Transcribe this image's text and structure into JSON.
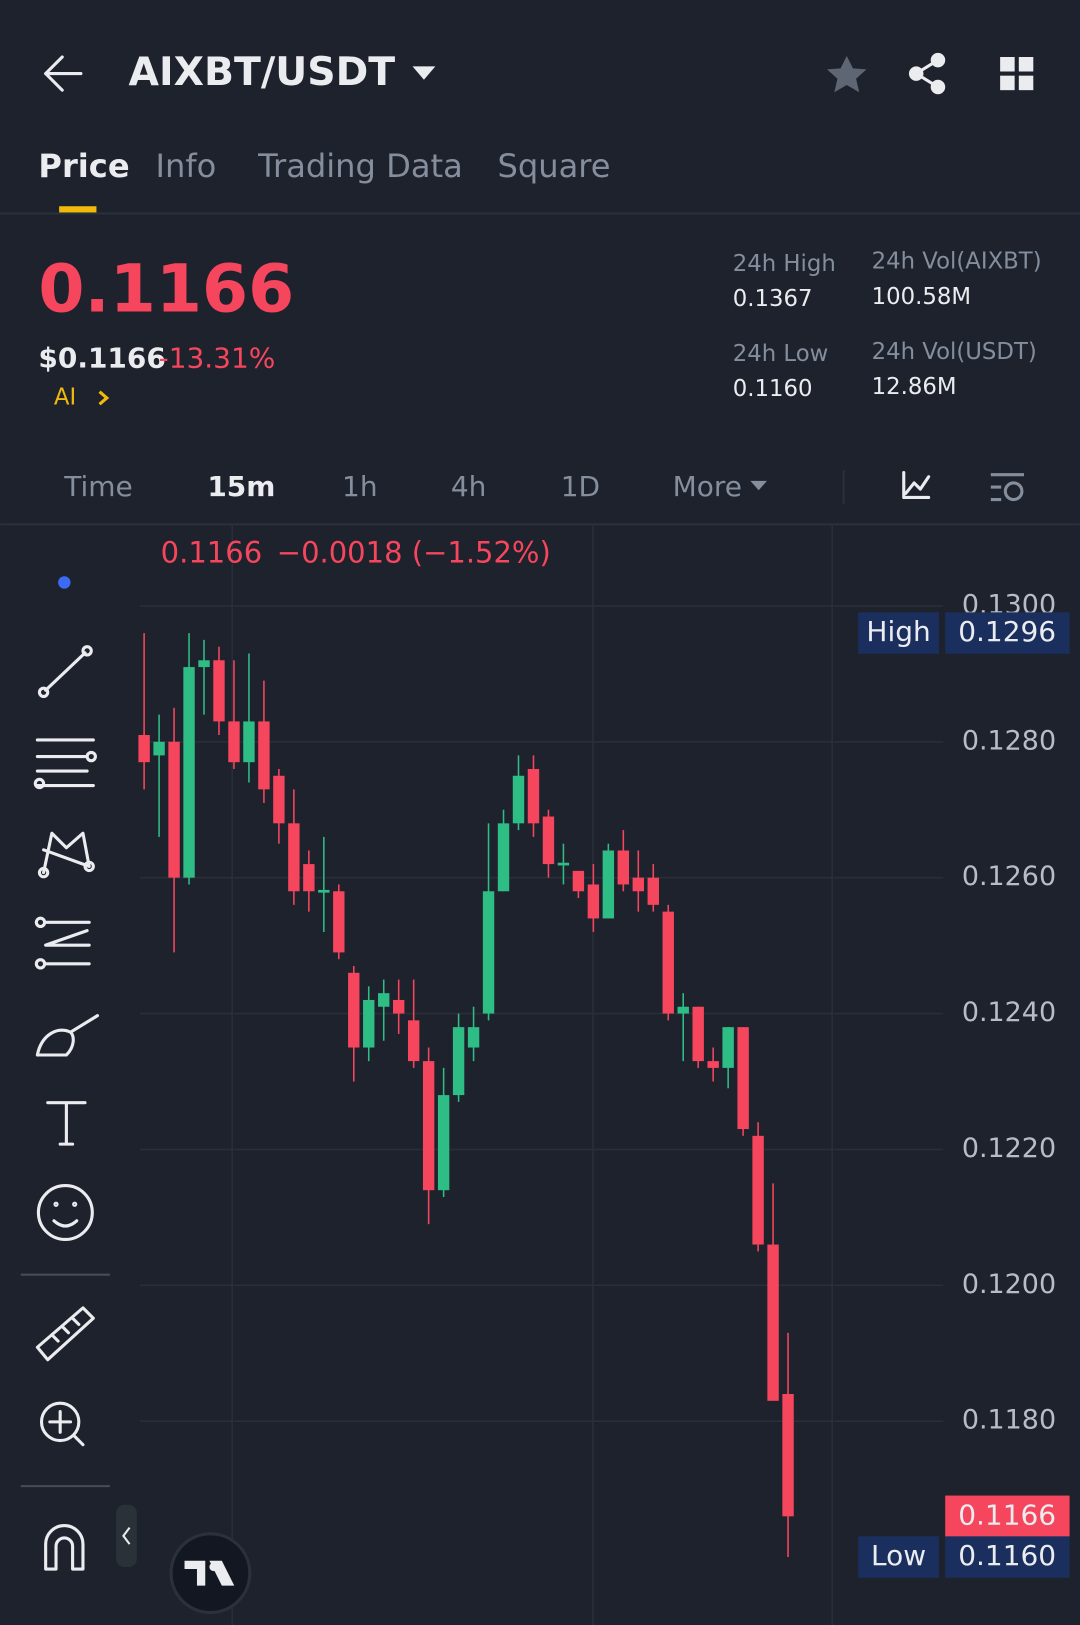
{
  "header": {
    "pair": "AIXBT/USDT"
  },
  "tabs": [
    "Price",
    "Info",
    "Trading Data",
    "Square"
  ],
  "price": {
    "last": "0.1166",
    "usd": "$0.1166",
    "change": "-13.31%",
    "tag": "AI"
  },
  "stats": [
    {
      "label": "24h High",
      "value": "0.1367"
    },
    {
      "label": "24h Vol(AIXBT)",
      "value": "100.58M"
    },
    {
      "label": "24h Low",
      "value": "0.1160"
    },
    {
      "label": "24h Vol(USDT)",
      "value": "12.86M"
    }
  ],
  "intervals": [
    "Time",
    "15m",
    "1h",
    "4h",
    "1D",
    "More"
  ],
  "chart_data": {
    "type": "candlestick",
    "quote": "0.1166",
    "change": "−0.0018 (−1.52%)",
    "up_color": "#2ebd85",
    "down_color": "#f6465d",
    "open": [
      0.1281,
      0.1278,
      0.128,
      0.126,
      0.1291,
      0.1292,
      0.1283,
      0.1277,
      0.1283,
      0.1275,
      0.1268,
      0.1262,
      0.12578,
      0.1258,
      0.1246,
      0.1235,
      0.1241,
      0.1242,
      0.1239,
      0.1233,
      0.1214,
      0.1228,
      0.1235,
      0.124,
      0.1258,
      0.1268,
      0.1276,
      0.1269,
      0.12618,
      0.1261,
      0.1259,
      0.1254,
      0.1264,
      0.126,
      0.126,
      0.1255,
      0.124,
      0.1241,
      0.1233,
      0.1232,
      0.1238,
      0.1222,
      0.1206,
      0.1184
    ],
    "high": [
      0.1296,
      0.1284,
      0.1285,
      0.1296,
      0.1295,
      0.1294,
      0.1292,
      0.1293,
      0.1289,
      0.1276,
      0.1273,
      0.1264,
      0.1266,
      0.1259,
      0.1247,
      0.1244,
      0.1245,
      0.1245,
      0.1245,
      0.1235,
      0.1232,
      0.124,
      0.1241,
      0.1268,
      0.127,
      0.1278,
      0.1278,
      0.127,
      0.1265,
      0.1261,
      0.1262,
      0.1265,
      0.1267,
      0.1264,
      0.1262,
      0.1256,
      0.1243,
      0.1241,
      0.1235,
      0.1238,
      0.1238,
      0.1224,
      0.1215,
      0.1193
    ],
    "low": [
      0.1273,
      0.1266,
      0.1249,
      0.1259,
      0.1284,
      0.1281,
      0.1276,
      0.1274,
      0.1271,
      0.1265,
      0.1256,
      0.1255,
      0.1252,
      0.1248,
      0.123,
      0.1233,
      0.1236,
      0.1237,
      0.1232,
      0.1209,
      0.1213,
      0.1227,
      0.1233,
      0.1239,
      0.1258,
      0.1267,
      0.1266,
      0.126,
      0.1259,
      0.1257,
      0.1252,
      0.1254,
      0.1258,
      0.1255,
      0.1255,
      0.1239,
      0.1233,
      0.1232,
      0.123,
      0.1229,
      0.1222,
      0.1205,
      0.1183,
      0.116
    ],
    "close": [
      0.1277,
      0.128,
      0.126,
      0.1291,
      0.1292,
      0.1283,
      0.1277,
      0.1283,
      0.1273,
      0.1268,
      0.1258,
      0.1258,
      0.12582,
      0.1249,
      0.1235,
      0.1242,
      0.1243,
      0.124,
      0.1233,
      0.1214,
      0.1228,
      0.1238,
      0.1238,
      0.1258,
      0.1268,
      0.1275,
      0.1268,
      0.1262,
      0.12622,
      0.1258,
      0.1254,
      0.1264,
      0.1259,
      0.1258,
      0.1256,
      0.124,
      0.1241,
      0.1233,
      0.1232,
      0.1238,
      0.1223,
      0.1206,
      0.1183,
      0.1166
    ],
    "ylim": [
      0.115,
      0.1312
    ],
    "yticks": [
      {
        "value": 0.13,
        "label": "0.1300"
      },
      {
        "value": 0.128,
        "label": "0.1280"
      },
      {
        "value": 0.126,
        "label": "0.1260"
      },
      {
        "value": 0.124,
        "label": "0.1240"
      },
      {
        "value": 0.122,
        "label": "0.1220"
      },
      {
        "value": 0.12,
        "label": "0.1200"
      },
      {
        "value": 0.118,
        "label": "0.1180"
      }
    ],
    "badges": [
      {
        "label": "High",
        "value": 0.1296
      },
      {
        "value": 0.1166
      },
      {
        "label": "Low",
        "value": 0.116,
        "value_label": "0.1160"
      }
    ]
  }
}
